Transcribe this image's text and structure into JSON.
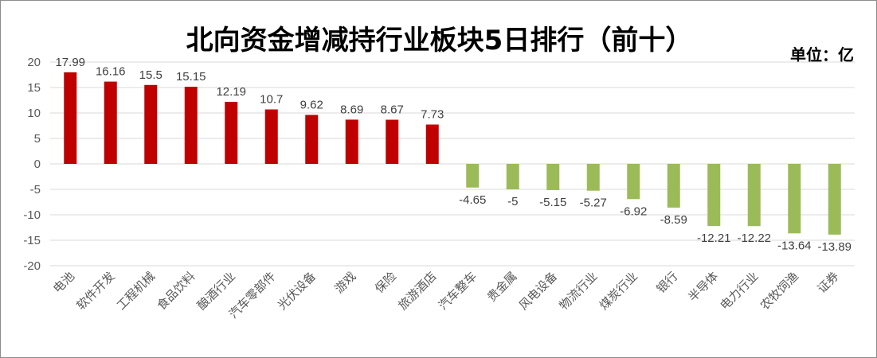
{
  "chart_data": {
    "type": "bar",
    "title": "北向资金增减持行业板块5日排行（前十）",
    "unit": "单位：亿",
    "xlabel": "",
    "ylabel": "",
    "ylim": [
      -20,
      20
    ],
    "ytick_step": 5,
    "yticks": [
      "20",
      "15",
      "10",
      "5",
      "0",
      "-5",
      "-10",
      "-15",
      "-20"
    ],
    "grid": true,
    "legend": "none",
    "colors": {
      "positive": "#c00000",
      "negative": "#9bbb59",
      "grid": "#d9d9d9"
    },
    "categories": [
      "电池",
      "软件开发",
      "工程机械",
      "食品饮料",
      "酿酒行业",
      "汽车零部件",
      "光伏设备",
      "游戏",
      "保险",
      "旅游酒店",
      "汽车整车",
      "贵金属",
      "风电设备",
      "物流行业",
      "煤炭行业",
      "银行",
      "半导体",
      "电力行业",
      "农牧饲渔",
      "证券"
    ],
    "values": [
      17.99,
      16.16,
      15.5,
      15.15,
      12.19,
      10.7,
      9.62,
      8.69,
      8.67,
      7.73,
      -4.65,
      -5,
      -5.15,
      -5.27,
      -6.92,
      -8.59,
      -12.21,
      -12.22,
      -13.64,
      -13.89
    ],
    "value_labels": [
      "17.99",
      "16.16",
      "15.5",
      "15.15",
      "12.19",
      "10.7",
      "9.62",
      "8.69",
      "8.67",
      "7.73",
      "-4.65",
      "-5",
      "-5.15",
      "-5.27",
      "-6.92",
      "-8.59",
      "-12.21",
      "-12.22",
      "-13.64",
      "-13.89"
    ]
  }
}
